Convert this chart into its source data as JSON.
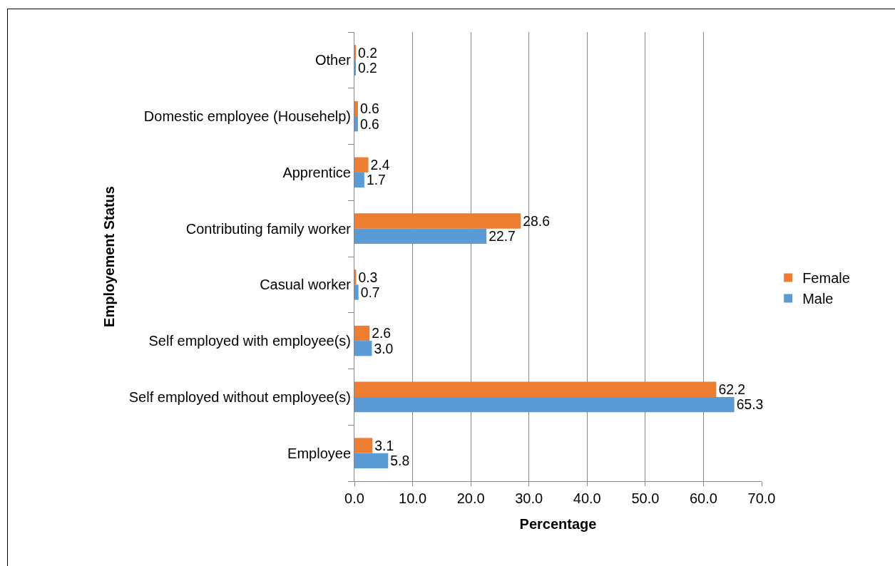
{
  "chart_data": {
    "type": "bar",
    "orientation": "horizontal",
    "xlabel": "Percentage",
    "ylabel": "Employement Status",
    "categories": [
      "Other",
      "Domestic employee (Househelp)",
      "Apprentice",
      "Contributing family worker",
      "Casual worker",
      "Self employed with employee(s)",
      "Self employed without employee(s)",
      "Employee"
    ],
    "series": [
      {
        "name": "Female",
        "color": "#ed7d31",
        "values": [
          0.2,
          0.6,
          2.4,
          28.6,
          0.3,
          2.6,
          62.2,
          3.1
        ],
        "value_labels": [
          "0.2",
          "0.6",
          "2.4",
          "28.6",
          "0.3",
          "2.6",
          "62.2",
          "3.1"
        ]
      },
      {
        "name": "Male",
        "color": "#5b9bd5",
        "values": [
          0.2,
          0.6,
          1.7,
          22.7,
          0.7,
          3.0,
          65.3,
          5.8
        ],
        "value_labels": [
          "0.2",
          "0.6",
          "1.7",
          "22.7",
          "0.7",
          "3.0",
          "65.3",
          "5.8"
        ]
      }
    ],
    "xlim": [
      0,
      70
    ],
    "xticks": [
      {
        "value": 0,
        "label": "0.0"
      },
      {
        "value": 10,
        "label": "10.0"
      },
      {
        "value": 20,
        "label": "20.0"
      },
      {
        "value": 30,
        "label": "30.0"
      },
      {
        "value": 40,
        "label": "40.0"
      },
      {
        "value": 50,
        "label": "50.0"
      },
      {
        "value": 60,
        "label": "60.0"
      },
      {
        "value": 70,
        "label": "70.0"
      }
    ],
    "grid": "x",
    "legend": "right"
  }
}
